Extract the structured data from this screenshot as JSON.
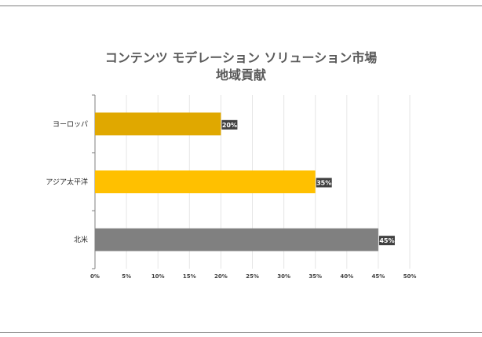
{
  "chart_data": {
    "type": "bar",
    "orientation": "horizontal",
    "title_line1": "コンテンツ モデレーション ソリューション市場",
    "title_line2": "地域貢献",
    "categories": [
      "ヨーロッパ",
      "アジア太平洋",
      "北米"
    ],
    "values": [
      20,
      35,
      45
    ],
    "data_labels": [
      "20%",
      "35%",
      "45%"
    ],
    "bar_colors": [
      "#e0a800",
      "#ffc000",
      "#808080"
    ],
    "xlim": [
      0,
      50
    ],
    "xticks": [
      "0%",
      "5%",
      "10%",
      "15%",
      "20%",
      "25%",
      "30%",
      "35%",
      "40%",
      "45%",
      "50%"
    ],
    "grid": true,
    "legend": "none"
  }
}
